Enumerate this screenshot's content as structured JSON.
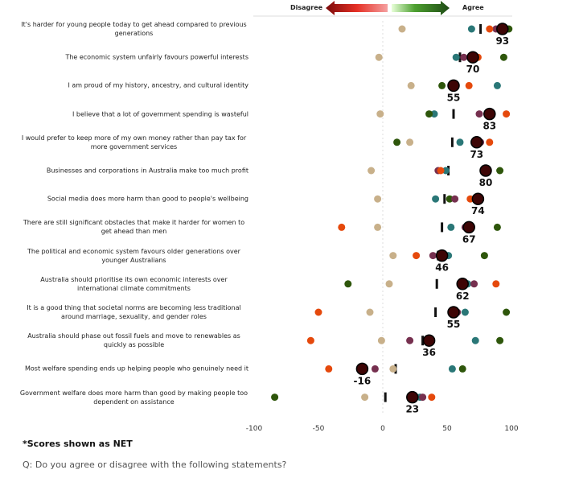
{
  "header": {
    "disagree_label": "Disagree",
    "agree_label": "Agree"
  },
  "chart_data": {
    "type": "scatter",
    "title": "",
    "xlabel": "",
    "ylabel": "",
    "xlim": [
      -100,
      100
    ],
    "xticks": [
      "-100",
      "-50",
      "0",
      "50",
      "100"
    ],
    "tick_values": [
      -100,
      -50,
      0,
      50,
      100
    ],
    "series_colors": {
      "main": "#3d0505",
      "beige": "#c8b08a",
      "teal": "#2a7777",
      "orange": "#e5490c",
      "purple": "#76304f",
      "green": "#2e560b",
      "marker": "#111111"
    },
    "rows": [
      {
        "label": "It's harder for young people today to get ahead compared to previous generations",
        "main": 93,
        "main_label": "93",
        "beige": 15,
        "teal": 69,
        "orange": 83,
        "purple": 88,
        "green": 98,
        "marker": 76
      },
      {
        "label": "The economic system unfairly favours powerful interests",
        "main": 70,
        "main_label": "70",
        "beige": -3,
        "teal": 57,
        "orange": 74,
        "purple": 63,
        "green": 94,
        "marker": 60
      },
      {
        "label": "I am proud of my history, ancestry, and cultural identity",
        "main": 55,
        "main_label": "55",
        "beige": 22,
        "teal": 89,
        "orange": 67,
        "purple": 55,
        "green": 46,
        "marker": null
      },
      {
        "label": "I believe that a lot of government spending is wasteful",
        "main": 83,
        "main_label": "83",
        "beige": -2,
        "teal": 40,
        "orange": 96,
        "purple": 75,
        "green": 36,
        "marker": 55
      },
      {
        "label": "I would prefer to keep more of my own money rather than pay tax for more government services",
        "main": 73,
        "main_label": "73",
        "beige": 21,
        "teal": 60,
        "orange": 83,
        "purple": 76,
        "green": 11,
        "marker": 54
      },
      {
        "label": "Businesses and corporations in Australia make too much profit",
        "main": 80,
        "main_label": "80",
        "beige": -9,
        "teal": 49,
        "orange": 45,
        "purple": 43,
        "green": 91,
        "marker": 51
      },
      {
        "label": "Social media does more harm than good to people's wellbeing",
        "main": 74,
        "main_label": "74",
        "beige": -4,
        "teal": 41,
        "orange": 68,
        "purple": 56,
        "green": 52,
        "marker": 48
      },
      {
        "label": "There are still significant obstacles that make it harder for women to get ahead than men",
        "main": 67,
        "main_label": "67",
        "beige": -4,
        "teal": 53,
        "orange": -32,
        "purple": 64,
        "green": 89,
        "marker": 46
      },
      {
        "label": "The political and economic system favours older generations over younger Australians",
        "main": 46,
        "main_label": "46",
        "beige": 8,
        "teal": 51,
        "orange": 26,
        "purple": 39,
        "green": 79,
        "marker": 43
      },
      {
        "label": "Australia should prioritise its own economic interests over international climate commitments",
        "main": 62,
        "main_label": "62",
        "beige": 5,
        "teal": 66,
        "orange": 88,
        "purple": 71,
        "green": -27,
        "marker": 42
      },
      {
        "label": "It is a good thing that societal norms are becoming less traditional around marriage, sexuality, and gender roles",
        "main": 55,
        "main_label": "55",
        "beige": -10,
        "teal": 64,
        "orange": -50,
        "purple": 58,
        "green": 96,
        "marker": 41
      },
      {
        "label": "Australia should phase out fossil fuels and move to renewables as quickly as possible",
        "main": 36,
        "main_label": "36",
        "beige": -1,
        "teal": 72,
        "orange": -56,
        "purple": 21,
        "green": 91,
        "marker": 31
      },
      {
        "label": "Most welfare spending ends up helping people who genuinely need it",
        "main": -16,
        "main_label": "-16",
        "beige": 8,
        "teal": 54,
        "orange": -42,
        "purple": -6,
        "green": 62,
        "marker": 10
      },
      {
        "label": "Government welfare does more harm than good by making people too dependent on assistance",
        "main": 23,
        "main_label": "23",
        "beige": -14,
        "teal": 29,
        "orange": 38,
        "purple": 31,
        "green": -84,
        "marker": 2
      }
    ]
  },
  "footer": {
    "note": "*Scores shown as NET",
    "question": "Q: Do you agree or disagree with the following statements?"
  }
}
